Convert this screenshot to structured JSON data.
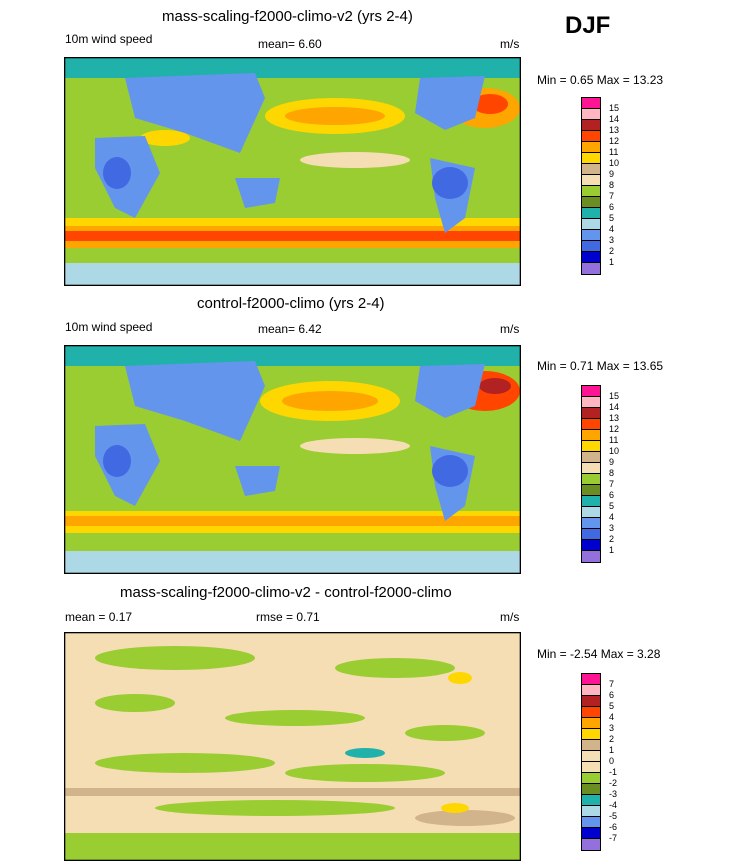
{
  "season": "DJF",
  "panels": [
    {
      "title": "mass-scaling-f2000-climo-v2 (yrs 2-4)",
      "left_label": "10m wind speed",
      "mid_label": "mean=   6.60",
      "units": "m/s",
      "minmax": "Min =   0.65 Max =  13.23",
      "levels": [
        "15",
        "14",
        "13",
        "12",
        "11",
        "10",
        "9",
        "8",
        "7",
        "6",
        "5",
        "4",
        "3",
        "2",
        "1"
      ],
      "colors": [
        "#ff1493",
        "#ffb6c1",
        "#b22222",
        "#ff4500",
        "#ffa500",
        "#ffd700",
        "#d2b48c",
        "#f5deb3",
        "#9acd32",
        "#6b8e23",
        "#20b2aa",
        "#add8e6",
        "#6495ed",
        "#4169e1",
        "#0000cd",
        "#9370db"
      ]
    },
    {
      "title": "control-f2000-climo (yrs 2-4)",
      "left_label": "10m wind speed",
      "mid_label": "mean=   6.42",
      "units": "m/s",
      "minmax": "Min =   0.71 Max =  13.65",
      "levels": [
        "15",
        "14",
        "13",
        "12",
        "11",
        "10",
        "9",
        "8",
        "7",
        "6",
        "5",
        "4",
        "3",
        "2",
        "1"
      ],
      "colors": [
        "#ff1493",
        "#ffb6c1",
        "#b22222",
        "#ff4500",
        "#ffa500",
        "#ffd700",
        "#d2b48c",
        "#f5deb3",
        "#9acd32",
        "#6b8e23",
        "#20b2aa",
        "#add8e6",
        "#6495ed",
        "#4169e1",
        "#0000cd",
        "#9370db"
      ]
    },
    {
      "title": "mass-scaling-f2000-climo-v2 - control-f2000-climo",
      "left_label": "mean =   0.17",
      "mid_label": "rmse =   0.71",
      "units": "m/s",
      "minmax": "Min =  -2.54 Max =   3.28",
      "levels": [
        "7",
        "6",
        "5",
        "4",
        "3",
        "2",
        "1",
        "0",
        "-1",
        "-2",
        "-3",
        "-4",
        "-5",
        "-6",
        "-7"
      ],
      "colors": [
        "#ff1493",
        "#ffb6c1",
        "#b22222",
        "#ff4500",
        "#ffa500",
        "#ffd700",
        "#d2b48c",
        "#f5deb3",
        "#f5deb3",
        "#9acd32",
        "#6b8e23",
        "#20b2aa",
        "#add8e6",
        "#6495ed",
        "#0000cd",
        "#9370db"
      ]
    }
  ]
}
